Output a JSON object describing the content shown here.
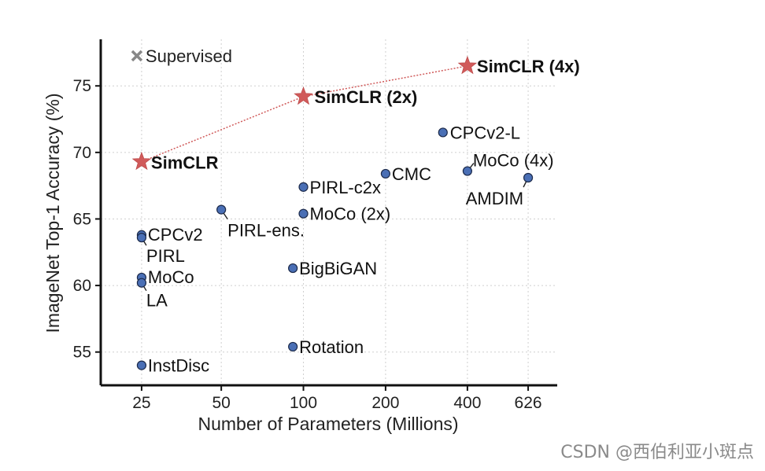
{
  "chart_data": {
    "type": "scatter",
    "xlabel": "Number of Parameters (Millions)",
    "ylabel": "ImageNet Top-1 Accuracy (%)",
    "x_scale": "log",
    "xlim": [
      17,
      800
    ],
    "ylim": [
      52.5,
      78.5
    ],
    "x_ticks": [
      {
        "value": 24,
        "label": "25"
      },
      {
        "value": 47,
        "label": "50"
      },
      {
        "value": 94,
        "label": "100"
      },
      {
        "value": 188,
        "label": "200"
      },
      {
        "value": 375,
        "label": "400"
      },
      {
        "value": 626,
        "label": "626"
      }
    ],
    "y_ticks": [
      55,
      60,
      65,
      70,
      75
    ],
    "grid": true,
    "legend": {
      "label": "Supervised",
      "marker": "x",
      "color": "#888888",
      "position": "top-left"
    },
    "supervised": [
      {
        "name": "SimCLR",
        "x": 24,
        "y": 69.3
      },
      {
        "name": "SimCLR (2x)",
        "x": 94,
        "y": 74.2
      },
      {
        "name": "SimCLR (4x)",
        "x": 375,
        "y": 76.5
      }
    ],
    "points": [
      {
        "name": "CPCv2-L",
        "x": 305,
        "y": 71.5
      },
      {
        "name": "MoCo (4x)",
        "x": 375,
        "y": 68.6
      },
      {
        "name": "AMDIM",
        "x": 626,
        "y": 68.1
      },
      {
        "name": "CMC",
        "x": 188,
        "y": 68.4
      },
      {
        "name": "PIRL-c2x",
        "x": 94,
        "y": 67.4
      },
      {
        "name": "MoCo (2x)",
        "x": 94,
        "y": 65.4
      },
      {
        "name": "PIRL-ens.",
        "x": 47,
        "y": 65.7
      },
      {
        "name": "CPCv2",
        "x": 24,
        "y": 63.8
      },
      {
        "name": "PIRL",
        "x": 24,
        "y": 63.6
      },
      {
        "name": "BigBiGAN",
        "x": 86,
        "y": 61.3
      },
      {
        "name": "MoCo",
        "x": 24,
        "y": 60.6
      },
      {
        "name": "LA",
        "x": 24,
        "y": 60.2
      },
      {
        "name": "Rotation",
        "x": 86,
        "y": 55.4
      },
      {
        "name": "InstDisc",
        "x": 24,
        "y": 54.0
      }
    ],
    "colors": {
      "star": "#d05a5a",
      "point": "#4a6fb5",
      "point_edge": "#1c2a4a",
      "legend_marker": "#888888",
      "line": "#d05a5a"
    }
  },
  "watermark": "CSDN @西伯利亚小斑点"
}
